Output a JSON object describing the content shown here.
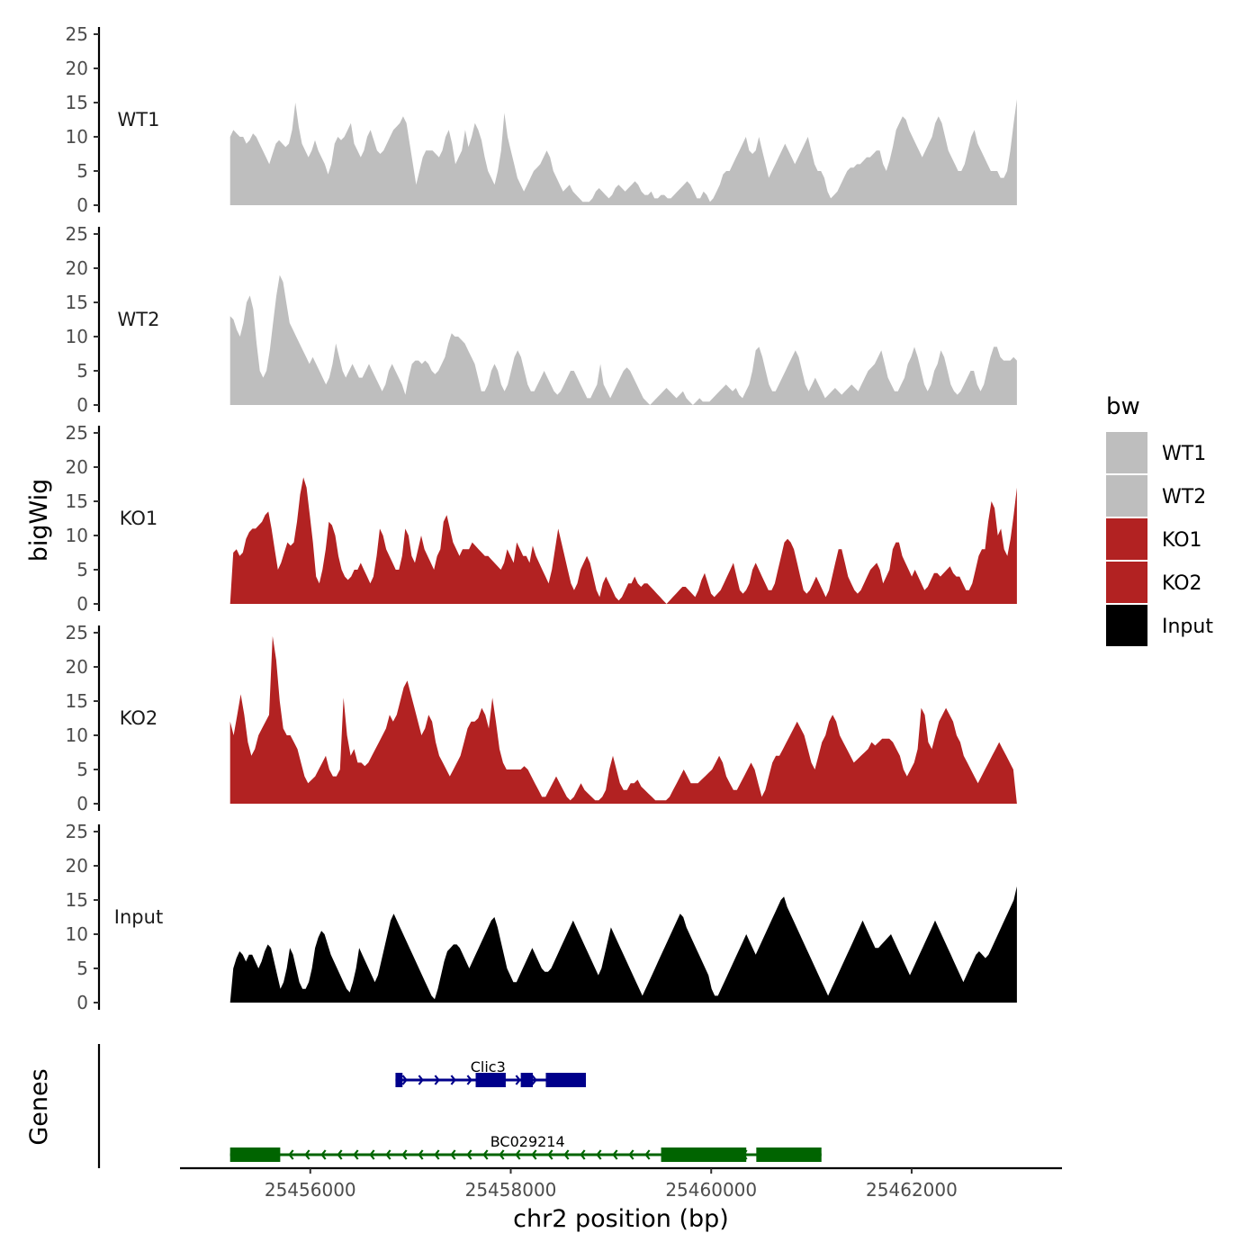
{
  "chart_data": {
    "type": "area",
    "xlabel": "chr2 position (bp)",
    "ylabel": "bigWig",
    "gene_panel_label": "Genes",
    "legend_title": "bw",
    "xlim": [
      25454700,
      25463500
    ],
    "ylim": [
      0,
      25
    ],
    "yticks": [
      0,
      5,
      10,
      15,
      20,
      25
    ],
    "xticks": [
      25456000,
      25458000,
      25460000,
      25462000
    ],
    "xtick_labels": [
      "25456000",
      "25458000",
      "25460000",
      "25462000"
    ],
    "legend": [
      {
        "name": "WT1",
        "color": "#BEBEBE"
      },
      {
        "name": "WT2",
        "color": "#BEBEBE"
      },
      {
        "name": "KO1",
        "color": "#B22222"
      },
      {
        "name": "KO2",
        "color": "#B22222"
      },
      {
        "name": "Input",
        "color": "#000000"
      }
    ],
    "x_range": [
      25455200,
      25463050
    ],
    "bin_width": 50,
    "series": [
      {
        "name": "WT1",
        "color": "#BEBEBE",
        "values": [
          10,
          11,
          10.5,
          10,
          10,
          9,
          9.5,
          10.5,
          10,
          9,
          8,
          7,
          6,
          7.5,
          9,
          9.5,
          9,
          8.5,
          9,
          11,
          15,
          11.5,
          9,
          8,
          7,
          8,
          9.5,
          8,
          7,
          6,
          4.5,
          6,
          9,
          10,
          9.5,
          10,
          11,
          12,
          9,
          8,
          7,
          8,
          10,
          11,
          9.5,
          8,
          7.5,
          8,
          9,
          10,
          11,
          11.5,
          12,
          13,
          12,
          9,
          6,
          3,
          5,
          7,
          8,
          8,
          8,
          7.5,
          7,
          8,
          10,
          11,
          9,
          6,
          7,
          8,
          11,
          8.5,
          10,
          12,
          11,
          9.5,
          7,
          5,
          4,
          3,
          5,
          8,
          13.5,
          10,
          8,
          6,
          4,
          3,
          2,
          3,
          4,
          5,
          5.5,
          6,
          7,
          8,
          7,
          5,
          4,
          3,
          2,
          2.5,
          3,
          2,
          1.5,
          1,
          0.5,
          0.5,
          0.5,
          1,
          2,
          2.5,
          2,
          1.5,
          1,
          1.5,
          2.5,
          3,
          2.5,
          2,
          2.5,
          3,
          3.5,
          3,
          2,
          1.5,
          1.5,
          2,
          1,
          1,
          1.5,
          1.5,
          1,
          1,
          1.5,
          2,
          2.5,
          3,
          3.5,
          3,
          2,
          1,
          1,
          2,
          1.5,
          0.5,
          1,
          2,
          3,
          4.5,
          5,
          5,
          6,
          7,
          8,
          9,
          10,
          8,
          7.5,
          8,
          10,
          8,
          6,
          4,
          5,
          6,
          7,
          8,
          9,
          8,
          7,
          6,
          7,
          8,
          9,
          10,
          8,
          6,
          5,
          5,
          4,
          2,
          1,
          1.5,
          2,
          3,
          4,
          5,
          5.5,
          5.5,
          6,
          6,
          6.5,
          7,
          7,
          7.5,
          8,
          8,
          6,
          5,
          6.5,
          8.5,
          11,
          12,
          13,
          12.5,
          11,
          10,
          9,
          8,
          7,
          8,
          9,
          10,
          12,
          13,
          12,
          10,
          8,
          7,
          6,
          5,
          5,
          6,
          8,
          10,
          11,
          9,
          8,
          7,
          6,
          5,
          5,
          5,
          4,
          4,
          5,
          8,
          12,
          15.5
        ]
      },
      {
        "name": "WT2",
        "color": "#BEBEBE",
        "values": [
          13,
          12.5,
          11,
          10,
          12,
          15,
          16,
          14,
          9,
          5,
          4,
          5,
          8,
          12,
          16,
          19,
          18,
          15,
          12,
          11,
          10,
          9,
          8,
          7,
          6,
          7,
          6,
          5,
          4,
          3,
          4,
          6,
          9,
          7,
          5,
          4,
          5,
          6,
          5,
          4,
          4,
          5,
          6,
          5,
          4,
          3,
          2,
          3,
          5,
          6,
          5,
          4,
          3,
          1.5,
          4,
          6,
          6.5,
          6.5,
          6,
          6.5,
          6,
          5,
          4.5,
          5,
          6,
          7,
          9,
          10.5,
          10,
          10,
          9.5,
          9,
          8,
          7,
          6,
          4,
          2,
          2,
          3,
          5,
          6,
          5,
          3,
          2,
          3,
          5,
          7,
          8,
          7,
          5,
          3,
          2,
          2,
          3,
          4,
          5,
          4,
          3,
          2,
          1.5,
          2,
          3,
          4,
          5,
          5,
          4,
          3,
          2,
          1,
          1,
          2,
          3,
          6,
          3,
          2,
          1,
          2,
          3,
          4,
          5,
          5.5,
          5,
          4,
          3,
          2,
          1,
          0.5,
          0,
          0.5,
          1,
          1.5,
          2,
          2.5,
          2,
          1.5,
          1,
          1.5,
          2,
          1,
          0.5,
          0,
          0.5,
          1,
          0.5,
          0.5,
          0.5,
          1,
          1.5,
          2,
          2.5,
          3,
          2.5,
          2,
          2.5,
          1.5,
          1,
          2,
          3,
          5,
          8,
          8.5,
          7,
          5,
          3,
          2,
          2,
          3,
          4,
          5,
          6,
          7,
          8,
          7,
          5,
          3,
          2,
          3,
          4,
          3,
          2,
          1,
          1.5,
          2,
          2.5,
          2,
          1.5,
          2,
          2.5,
          3,
          2.5,
          2,
          3,
          4,
          5,
          5.5,
          6,
          7,
          8,
          6,
          4,
          3,
          2,
          2,
          3,
          4,
          6,
          7,
          8.5,
          7,
          5,
          3,
          2,
          3,
          5,
          6,
          8,
          7,
          5,
          3,
          2,
          1.5,
          2,
          3,
          4,
          5,
          5,
          3,
          2,
          3,
          5,
          7,
          8.5,
          8.5,
          7,
          6.5,
          6.5,
          6.5,
          7,
          6.5
        ]
      },
      {
        "name": "KO1",
        "color": "#B22222",
        "values": [
          0,
          7.5,
          8,
          7,
          7.5,
          9.5,
          10.5,
          11,
          11,
          11.5,
          12,
          13,
          13.5,
          11,
          8,
          5,
          6,
          7.5,
          9,
          8.5,
          9,
          12,
          16,
          18.5,
          17,
          13,
          9,
          4,
          3,
          5,
          8,
          12,
          11.5,
          10,
          7,
          5,
          4,
          3.5,
          4,
          5,
          5,
          6,
          5,
          4,
          3,
          4,
          7,
          11,
          10,
          8,
          7,
          6,
          5,
          5,
          7,
          11,
          10,
          7,
          6,
          8,
          10,
          8,
          7,
          6,
          5,
          7,
          8,
          12,
          13,
          11,
          9,
          8,
          7,
          8,
          8,
          8,
          9,
          8.5,
          8,
          7.5,
          7,
          7,
          6.5,
          6,
          5.5,
          5,
          6,
          8,
          7,
          6,
          9,
          8,
          7,
          7,
          6,
          8.5,
          7,
          6,
          5,
          4,
          3,
          5,
          8,
          11,
          9,
          7,
          5,
          3,
          2,
          3,
          5,
          6,
          7,
          6,
          4,
          2,
          1,
          3,
          4,
          3,
          2,
          1,
          0.5,
          1,
          2,
          3,
          3,
          4,
          3,
          2.5,
          3,
          3,
          2.5,
          2,
          1.5,
          1,
          0.5,
          0,
          0.5,
          1,
          1.5,
          2,
          2.5,
          2.5,
          2,
          1.5,
          1,
          2,
          3.5,
          4.5,
          3,
          1.5,
          1,
          1.5,
          2,
          3,
          4,
          5,
          6,
          4,
          2,
          1.5,
          2,
          3,
          5,
          6,
          5,
          4,
          3,
          2,
          2,
          3,
          5,
          7,
          9,
          9.5,
          9,
          8,
          6,
          4,
          2,
          1.5,
          2,
          3,
          4,
          3,
          2,
          1,
          2,
          4,
          6,
          8,
          8,
          6,
          4,
          3,
          2,
          1.5,
          2,
          3,
          4,
          5,
          5.5,
          6,
          5,
          3,
          4,
          5,
          8,
          9,
          9,
          7,
          6,
          5,
          4,
          5,
          4,
          3,
          2,
          2.5,
          3.5,
          4.5,
          4.5,
          4,
          4.5,
          5,
          5.5,
          4.5,
          4,
          4,
          3,
          2,
          2,
          3,
          5,
          7,
          8,
          8,
          12,
          15,
          14,
          10,
          11,
          8,
          7,
          9.5,
          13,
          17
        ]
      },
      {
        "name": "KO2",
        "color": "#B22222",
        "values": [
          12,
          10,
          13,
          16,
          13,
          9,
          7,
          8,
          10,
          11,
          12,
          13,
          24.5,
          21,
          15,
          11,
          10,
          10,
          9,
          8,
          6,
          4,
          3,
          3.5,
          4,
          5,
          6,
          7,
          5,
          4,
          4,
          5,
          15.5,
          10,
          7,
          8,
          6,
          6,
          5.5,
          6,
          7,
          8,
          9,
          10,
          11,
          13,
          12,
          13,
          15,
          17,
          18,
          16,
          14,
          12,
          10,
          11,
          13,
          12,
          9,
          7,
          6,
          5,
          4,
          5,
          6,
          7,
          9,
          11,
          12,
          12,
          12.5,
          14,
          13,
          11,
          15.5,
          12,
          8,
          6,
          5,
          5,
          5,
          5,
          5,
          5.5,
          5,
          4,
          3,
          2,
          1,
          1,
          2,
          3,
          4,
          3,
          2,
          1,
          0.5,
          1,
          2,
          3,
          2,
          1.5,
          1,
          0.5,
          0.5,
          1,
          2,
          5,
          7,
          5,
          3,
          2,
          2,
          3,
          3,
          3.5,
          2.5,
          2,
          1.5,
          1,
          0.5,
          0.5,
          0.5,
          0.5,
          1,
          2,
          3,
          4,
          5,
          4,
          3,
          3,
          3,
          3.5,
          4,
          4.5,
          5,
          6,
          7,
          6,
          4,
          3,
          2,
          2,
          3,
          4,
          5,
          6,
          5,
          3,
          1,
          2,
          4,
          6,
          7,
          7,
          8,
          9,
          10,
          11,
          12,
          11,
          10,
          8,
          6,
          5,
          7,
          9,
          10,
          12,
          13,
          12,
          10,
          9,
          8,
          7,
          6,
          6.5,
          7,
          7.5,
          8,
          9,
          8.5,
          9,
          9.5,
          9.5,
          9.5,
          9,
          8,
          7,
          5,
          4,
          5,
          6,
          8,
          14,
          13,
          9,
          8,
          10,
          12,
          13,
          14,
          13,
          12,
          10,
          9,
          7,
          6,
          5,
          4,
          3,
          4,
          5,
          6,
          7,
          8,
          9,
          8,
          7,
          6,
          5,
          0
        ]
      },
      {
        "name": "Input",
        "color": "#000000",
        "values": [
          0,
          5,
          6.5,
          7.5,
          7,
          6,
          7,
          7,
          6,
          5,
          6,
          7.5,
          8.5,
          8,
          6,
          4,
          2,
          3,
          5,
          8,
          7,
          5,
          3,
          2,
          2,
          3,
          5,
          8,
          9.5,
          10.5,
          10,
          8.5,
          7,
          6,
          5,
          4,
          3,
          2,
          1.5,
          3,
          5,
          8,
          7,
          6,
          5,
          4,
          3,
          4,
          6,
          8,
          10,
          12,
          13,
          12,
          11,
          10,
          9,
          8,
          7,
          6,
          5,
          4,
          3,
          2,
          1,
          0.5,
          2,
          4,
          6,
          7.5,
          8,
          8.5,
          8.5,
          8,
          7,
          6,
          5,
          6,
          7,
          8,
          9,
          10,
          11,
          12,
          12.5,
          11,
          9,
          7,
          5,
          4,
          3,
          3,
          4,
          5,
          6,
          7,
          8,
          7,
          6,
          5,
          4.5,
          4.5,
          5,
          6,
          7,
          8,
          9,
          10,
          11,
          12,
          11,
          10,
          9,
          8,
          7,
          6,
          5,
          4,
          5,
          7,
          9,
          11,
          10,
          9,
          8,
          7,
          6,
          5,
          4,
          3,
          2,
          1,
          2,
          3,
          4,
          5,
          6,
          7,
          8,
          9,
          10,
          11,
          12,
          13,
          12.5,
          11,
          10,
          9,
          8,
          7,
          6,
          5,
          4,
          2,
          1,
          1,
          2,
          3,
          4,
          5,
          6,
          7,
          8,
          9,
          10,
          9,
          8,
          7,
          8,
          9,
          10,
          11,
          12,
          13,
          14,
          15,
          15.5,
          14,
          13,
          12,
          11,
          10,
          9,
          8,
          7,
          6,
          5,
          4,
          3,
          2,
          1,
          2,
          3,
          4,
          5,
          6,
          7,
          8,
          9,
          10,
          11,
          12,
          11,
          10,
          9,
          8,
          8,
          8.5,
          9,
          9.5,
          10,
          9,
          8,
          7,
          6,
          5,
          4,
          5,
          6,
          7,
          8,
          9,
          10,
          11,
          12,
          11,
          10,
          9,
          8,
          7,
          6,
          5,
          4,
          3,
          4,
          5,
          6,
          7,
          7.5,
          7,
          6.5,
          7,
          8,
          9,
          10,
          11,
          12,
          13,
          14,
          15,
          17
        ]
      }
    ],
    "genes": [
      {
        "name": "Clic3",
        "strand": "+",
        "color": "#00008B",
        "start": 25456850,
        "end": 25458750,
        "exons": [
          [
            25456850,
            25456920
          ],
          [
            25457650,
            25457950
          ],
          [
            25458100,
            25458220
          ],
          [
            25458350,
            25458750
          ]
        ]
      },
      {
        "name": "BC029214",
        "strand": "-",
        "color": "#006400",
        "start": 25455200,
        "end": 25461100,
        "exons": [
          [
            25455200,
            25455700
          ],
          [
            25459500,
            25460350
          ],
          [
            25460450,
            25461100
          ]
        ]
      }
    ]
  }
}
